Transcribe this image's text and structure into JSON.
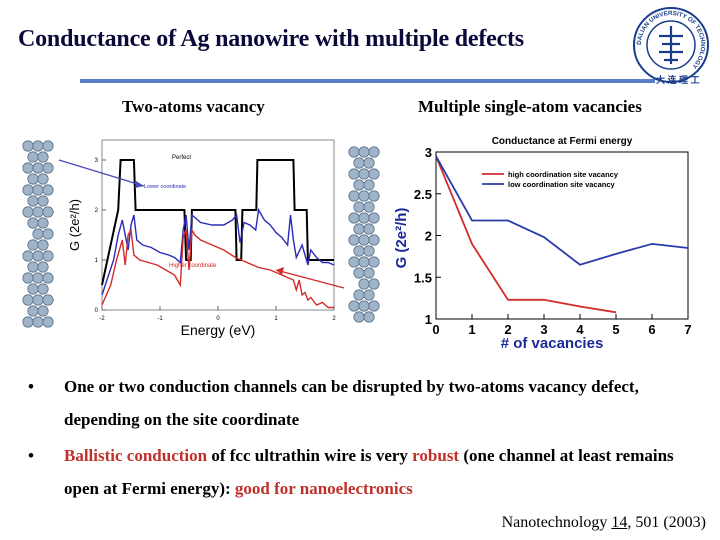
{
  "slide": {
    "title": "Conductance of Ag nanowire with multiple defects",
    "left_heading": "Two-atoms vacancy",
    "right_heading": "Multiple single-atom vacancies"
  },
  "logo": {
    "ring_text": "DALIAN UNIVERSITY OF TECHNOLOGY"
  },
  "bullets": [
    {
      "text": "One or two conduction channels can be disrupted by two-atoms vacancy defect, depending on the site coordinate"
    },
    {
      "part1": "Ballistic conduction",
      "part2": " of fcc ultrathin wire is very ",
      "part3": "robust",
      "part4": " (one channel at least remains open at Fermi energy): ",
      "part5": "good for nanoelectronics"
    }
  ],
  "citation": {
    "journal": "Nanotechnology ",
    "volume": "14",
    "rest": ", 501 (2003)"
  },
  "chart_data": [
    {
      "type": "line",
      "xlabel": "Energy (eV)",
      "ylabel": "G (2e²/h)",
      "xlim": [
        -2,
        2
      ],
      "ylim": [
        0,
        3.4
      ],
      "xticks": [
        "-2",
        "-1",
        "0",
        "1",
        "2"
      ],
      "yticks": [
        "0",
        "1",
        "2",
        "3"
      ],
      "annotations": [
        "Perfect",
        "Lower coordinate",
        "Higher coordinate"
      ],
      "series": [
        {
          "name": "Perfect",
          "color": "#000000",
          "x": [
            -2,
            -1.72,
            -1.7,
            -1.68,
            -1.45,
            -1.42,
            -0.58,
            -0.55,
            -0.47,
            -0.45,
            0.3,
            0.32,
            0.4,
            0.42,
            0.66,
            0.68,
            1.3,
            1.32,
            1.53,
            1.55,
            2
          ],
          "y": [
            0.5,
            2.0,
            2.5,
            3.0,
            3.0,
            2.0,
            2.0,
            1.0,
            1.0,
            2.0,
            2.0,
            1.0,
            1.0,
            2.0,
            2.0,
            3.0,
            3.0,
            2.0,
            2.0,
            1.0,
            1.0
          ]
        },
        {
          "name": "Lower coordinate",
          "color": "#2a2ab8",
          "x": [
            -2,
            -1.8,
            -1.72,
            -1.65,
            -1.55,
            -1.5,
            -1.45,
            -1.4,
            -1.3,
            -1.15,
            -1.0,
            -0.85,
            -0.75,
            -0.65,
            -0.6,
            -0.55,
            -0.5,
            -0.45,
            -0.4,
            -0.3,
            -0.1,
            0.1,
            0.25,
            0.32,
            0.38,
            0.45,
            0.55,
            0.65,
            0.7,
            0.8,
            0.9,
            1.0,
            1.1,
            1.2,
            1.25,
            1.3,
            1.35,
            1.45,
            1.5,
            1.55,
            1.6,
            1.7,
            1.8,
            1.9,
            2
          ],
          "y": [
            0.3,
            1.0,
            1.5,
            1.8,
            1.2,
            1.7,
            1.9,
            1.4,
            1.3,
            1.25,
            1.15,
            1.1,
            1.05,
            0.95,
            1.6,
            1.9,
            1.2,
            1.9,
            1.85,
            1.75,
            1.7,
            1.7,
            1.8,
            1.9,
            1.35,
            1.75,
            1.7,
            1.6,
            2.0,
            1.8,
            1.7,
            1.55,
            1.45,
            1.3,
            1.9,
            1.4,
            1.05,
            1.3,
            1.1,
            0.9,
            1.2,
            1.05,
            0.95,
            0.95,
            0.9
          ]
        },
        {
          "name": "Higher coordinate",
          "color": "#d42a2a",
          "x": [
            -2,
            -1.85,
            -1.75,
            -1.65,
            -1.6,
            -1.55,
            -1.5,
            -1.45,
            -1.35,
            -1.2,
            -1.05,
            -0.9,
            -0.75,
            -0.65,
            -0.6,
            -0.55,
            -0.5,
            -0.45,
            -0.4,
            -0.3,
            -0.1,
            0.1,
            0.3,
            0.5,
            0.7,
            0.9,
            1.0,
            1.1,
            1.2,
            1.3,
            1.35,
            1.4,
            1.45,
            1.5,
            1.55,
            1.6,
            1.7,
            1.8,
            1.9,
            2
          ],
          "y": [
            0.1,
            0.5,
            1.0,
            1.4,
            0.9,
            1.5,
            1.6,
            1.1,
            1.0,
            0.95,
            0.9,
            0.8,
            0.7,
            0.5,
            1.45,
            1.6,
            0.8,
            1.6,
            1.5,
            1.4,
            1.3,
            1.2,
            1.05,
            0.95,
            0.85,
            0.8,
            0.75,
            0.7,
            0.65,
            0.6,
            0.4,
            0.6,
            0.3,
            0.35,
            0.2,
            0.25,
            0.1,
            0.15,
            0.05,
            0.05
          ]
        }
      ]
    },
    {
      "type": "line",
      "title": "Conductance at Fermi energy",
      "xlabel": "# of vacancies",
      "ylabel": "G (2e²/h)",
      "xlim": [
        0,
        7
      ],
      "ylim": [
        1,
        3
      ],
      "xticks": [
        "0",
        "1",
        "2",
        "3",
        "4",
        "5",
        "6",
        "7"
      ],
      "yticks": [
        "1",
        "1.5",
        "2",
        "2.5",
        "3"
      ],
      "legend": "top-right",
      "series": [
        {
          "name": "high coordination site vacancy",
          "color": "#d42a2a",
          "x": [
            0,
            1,
            2,
            3,
            4,
            5
          ],
          "y": [
            2.95,
            1.9,
            1.23,
            1.23,
            1.15,
            1.08
          ]
        },
        {
          "name": "low coordination site vacancy",
          "color": "#2a3aa8",
          "x": [
            0,
            1,
            2,
            3,
            4,
            5,
            6,
            7
          ],
          "y": [
            2.95,
            2.18,
            2.18,
            1.98,
            1.65,
            1.78,
            1.9,
            1.85
          ]
        }
      ]
    }
  ]
}
